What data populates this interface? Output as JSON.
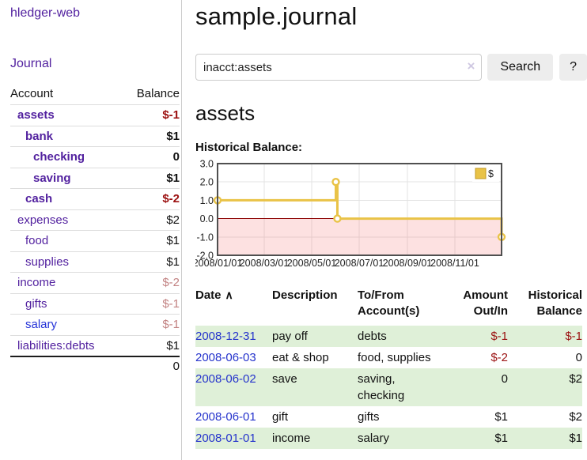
{
  "app": {
    "brand": "hledger-web"
  },
  "sidebar": {
    "journal_link": "Journal",
    "accounts": {
      "header_account": "Account",
      "header_balance": "Balance",
      "rows": [
        {
          "account": "assets",
          "indent": 1,
          "bold": true,
          "balance": "$-1"
        },
        {
          "account": "bank",
          "indent": 2,
          "bold": true,
          "balance": "$1"
        },
        {
          "account": "checking",
          "indent": 3,
          "bold": true,
          "balance": "0"
        },
        {
          "account": "saving",
          "indent": 3,
          "bold": true,
          "balance": "$1"
        },
        {
          "account": "cash",
          "indent": 2,
          "bold": true,
          "balance": "$-2"
        },
        {
          "account": "expenses",
          "indent": 1,
          "bold": false,
          "balance": "$2"
        },
        {
          "account": "food",
          "indent": 2,
          "bold": false,
          "balance": "$1"
        },
        {
          "account": "supplies",
          "indent": 2,
          "bold": false,
          "balance": "$1"
        },
        {
          "account": "income",
          "indent": 1,
          "bold": false,
          "balance": "$-2"
        },
        {
          "account": "gifts",
          "indent": 2,
          "bold": false,
          "balance": "$-1"
        },
        {
          "account": "salary",
          "indent": 2,
          "bold": false,
          "balance": "$-1",
          "blue": true
        },
        {
          "account": "liabilities:debts",
          "indent": 1,
          "bold": false,
          "balance": "$1"
        }
      ],
      "total": "0"
    }
  },
  "main": {
    "title": "sample.journal",
    "search": {
      "value": "inacct:assets",
      "clear_icon": "×",
      "search_button": "Search",
      "help_button": "?"
    },
    "account_heading": "assets",
    "chart_title": "Historical Balance:"
  },
  "chart_data": {
    "type": "line",
    "step": true,
    "title": "Historical Balance",
    "series": [
      {
        "name": "$",
        "color": "#e9c347",
        "points": [
          [
            "2008-01-01",
            1
          ],
          [
            "2008-06-01",
            2
          ],
          [
            "2008-06-03",
            0
          ],
          [
            "2008-12-31",
            -1
          ]
        ]
      }
    ],
    "x_range": [
      "2008-01-01",
      "2008-12-31"
    ],
    "x_ticks": [
      {
        "date": "2008-01-01",
        "label": "2008/01/01"
      },
      {
        "date": "2008-03-01",
        "label": "2008/03/01"
      },
      {
        "date": "2008-05-01",
        "label": "2008/05/01"
      },
      {
        "date": "2008-07-01",
        "label": "2008/07/01"
      },
      {
        "date": "2008-09-01",
        "label": "2008/09/01"
      },
      {
        "date": "2008-11-01",
        "label": "2008/11/01"
      }
    ],
    "ylim": [
      -2,
      3
    ],
    "y_ticks": [
      {
        "v": 3,
        "label": "3.0"
      },
      {
        "v": 2,
        "label": "2.0"
      },
      {
        "v": 1,
        "label": "1.0"
      },
      {
        "v": 0,
        "label": "0.0"
      },
      {
        "v": -1,
        "label": "-1.0"
      },
      {
        "v": -2,
        "label": "-2.0"
      }
    ],
    "grid": true,
    "legend_position": "top-right",
    "colors": {
      "line": "#e9c347",
      "marker_fill": "#ffffff",
      "negative_fill": "rgba(244,90,90,0.18)",
      "zero_line": "#8b0000",
      "gridline": "#e3e3e3",
      "plot_border": "#4f4f4f"
    }
  },
  "register": {
    "headers": {
      "date": "Date",
      "sort_caret": "∧",
      "description": "Description",
      "accounts": "To/From Account(s)",
      "amount": "Amount Out/In",
      "balance": "Historical Balance"
    },
    "rows": [
      {
        "date": "2008-12-31",
        "description": "pay off",
        "accounts": "debts",
        "amount": "$-1",
        "balance": "$-1"
      },
      {
        "date": "2008-06-03",
        "description": "eat & shop",
        "accounts": "food, supplies",
        "amount": "$-2",
        "balance": "0"
      },
      {
        "date": "2008-06-02",
        "description": "save",
        "accounts": "saving, checking",
        "amount": "0",
        "balance": "$2"
      },
      {
        "date": "2008-06-01",
        "description": "gift",
        "accounts": "gifts",
        "amount": "$1",
        "balance": "$2"
      },
      {
        "date": "2008-01-01",
        "description": "income",
        "accounts": "salary",
        "amount": "$1",
        "balance": "$1"
      }
    ]
  }
}
